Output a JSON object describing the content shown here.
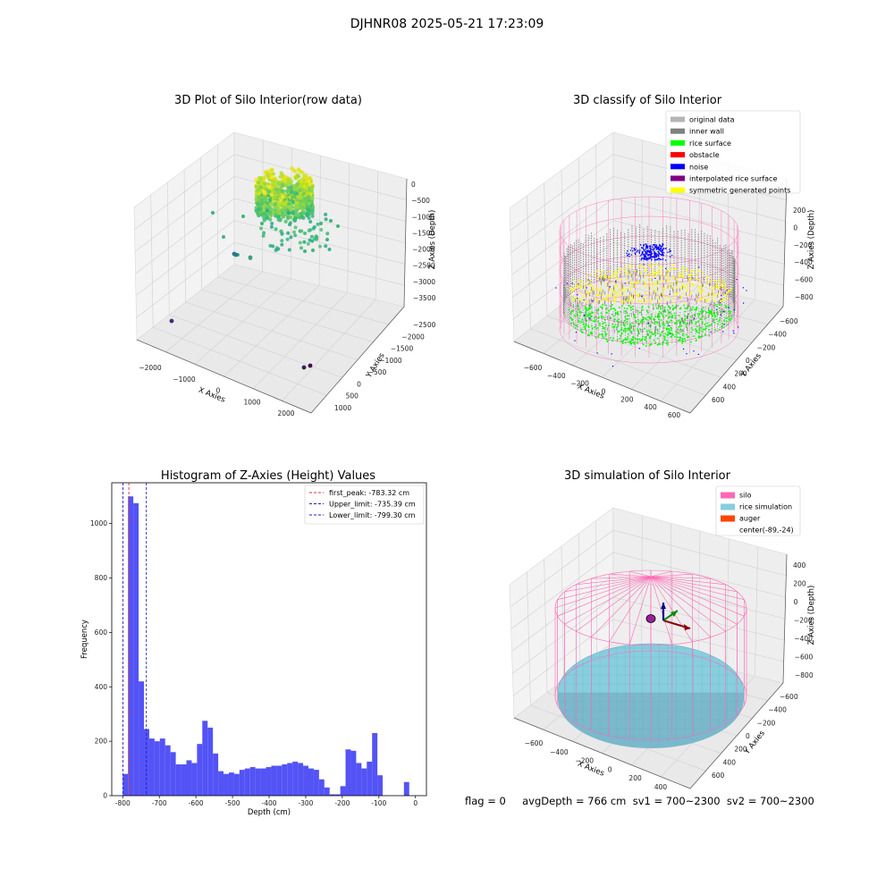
{
  "suptitle": "DJHNR08 2025-05-21 17:23:09",
  "footer_text": "flag = 0     avgDepth = 766 cm  sv1 = 700~2300  sv2 = 700~2300",
  "colors": {
    "bars": "#4a4af5",
    "first_peak_line": "#e03030",
    "limit_line": "#2020c0",
    "silo": "#ff69b4",
    "rice_simulation": "#87cedf",
    "auger": "#ff4500",
    "original_data": "#b5b5b5",
    "inner_wall": "#808080",
    "rice_surface": "#00ff00",
    "obstacle": "#ff0000",
    "noise": "#0000ff",
    "interpolated_rice_surface": "#800080",
    "symmetric_generated_points": "#ffff00"
  },
  "chart_data": [
    {
      "type": "scatter",
      "projection": "3d",
      "title": "3D Plot of Silo Interior(row data)",
      "xlabel": "X Axies",
      "ylabel": "Y Axies",
      "zlabel": "Z Axies (Depth)",
      "x_ticks": [
        "−2000",
        "−1000",
        "0",
        "1000",
        "2000"
      ],
      "y_ticks": [
        "1000",
        "500",
        "0",
        "−500",
        "−1000",
        "−1500",
        "−2000",
        "−2500"
      ],
      "z_ticks": [
        "0",
        "−500",
        "−1000",
        "−1500",
        "−2000",
        "−2500",
        "−3000",
        "−3500"
      ],
      "outlier_points": [
        {
          "x": -2200,
          "y": 900,
          "z": -3400
        },
        {
          "x": 2300,
          "y": -1600,
          "z": -3500
        },
        {
          "x": 2200,
          "y": -1500,
          "z": -3450
        },
        {
          "x": -1400,
          "y": 600,
          "z": -1900
        },
        {
          "x": -1300,
          "y": 550,
          "z": -1950
        },
        {
          "x": -800,
          "y": 300,
          "z": -1700
        }
      ],
      "colormap": "viridis"
    },
    {
      "type": "scatter",
      "projection": "3d",
      "title": "3D classify of Silo Interior",
      "xlabel": "X Axies",
      "ylabel": "Y Axies",
      "zlabel": "Z Axies (Depth)",
      "x_ticks": [
        "−600",
        "−400",
        "−200",
        "0",
        "200",
        "400",
        "600"
      ],
      "y_ticks": [
        "600",
        "400",
        "200",
        "0",
        "−200",
        "−400",
        "−600"
      ],
      "z_ticks": [
        "200",
        "0",
        "−200",
        "−400",
        "−600",
        "−800"
      ],
      "legend_position": "upper-right",
      "legend": [
        "original data",
        "inner wall",
        "rice surface",
        "obstacle",
        "noise",
        "interpolated rice surface",
        "symmetric generated points"
      ]
    },
    {
      "type": "bar",
      "title": "Histogram of Z-Axies (Height) Values",
      "xlabel": "Depth (cm)",
      "ylabel": "Frequency",
      "xlim": [
        -830,
        30
      ],
      "ylim": [
        0,
        1150
      ],
      "x_ticks": [
        -800,
        -700,
        -600,
        -500,
        -400,
        -300,
        -200,
        -100,
        0
      ],
      "y_ticks": [
        0,
        200,
        400,
        600,
        800,
        1000
      ],
      "bin_width": 14.5,
      "bins_start": [
        -800,
        -785.5,
        -771,
        -756.5,
        -742,
        -727.5,
        -713,
        -698.5,
        -684,
        -669.5,
        -655,
        -640.5,
        -626,
        -611.5,
        -597,
        -582.5,
        -568,
        -553.5,
        -539,
        -524.5,
        -510,
        -495.5,
        -481,
        -466.5,
        -452,
        -437.5,
        -423,
        -408.5,
        -394,
        -379.5,
        -365,
        -350.5,
        -336,
        -321.5,
        -307,
        -292.5,
        -278,
        -263.5,
        -249,
        -234.5,
        -220,
        -205.5,
        -191,
        -176.5,
        -162,
        -147.5,
        -133,
        -118.5,
        -104,
        -89.5,
        -75,
        -60.5,
        -46,
        -31.5,
        -17,
        -2.5
      ],
      "values": [
        80,
        1100,
        1075,
        420,
        245,
        210,
        200,
        210,
        185,
        160,
        115,
        115,
        130,
        120,
        190,
        275,
        250,
        155,
        90,
        80,
        85,
        80,
        95,
        100,
        105,
        100,
        100,
        105,
        110,
        110,
        115,
        120,
        125,
        120,
        110,
        100,
        95,
        60,
        30,
        5,
        5,
        35,
        170,
        165,
        120,
        100,
        125,
        230,
        75,
        0,
        0,
        0,
        0,
        50,
        0,
        0
      ],
      "vlines": [
        {
          "label": "first_peak: -783.32 cm",
          "x": -783.32,
          "color_key": "first_peak_line"
        },
        {
          "label": "Upper_limit: -735.39 cm",
          "x": -735.39,
          "color_key": "limit_line"
        },
        {
          "label": "Lower_limit: -799.30 cm",
          "x": -799.3,
          "color_key": "limit_line"
        }
      ],
      "legend_position": "upper-right"
    },
    {
      "type": "surface",
      "projection": "3d",
      "title": "3D simulation of Silo Interior",
      "xlabel": "X Axies",
      "ylabel": "Y Axies",
      "zlabel": "Z Axies (Depth)",
      "x_ticks": [
        "−600",
        "−400",
        "−200",
        "0",
        "200",
        "400"
      ],
      "y_ticks": [
        "600",
        "400",
        "200",
        "0",
        "−200",
        "−400",
        "−600"
      ],
      "z_ticks": [
        "400",
        "200",
        "0",
        "−200",
        "−400",
        "−600",
        "−800"
      ],
      "legend_position": "upper-right",
      "legend": [
        "silo",
        "rice simulation",
        "auger",
        "center(-89,-24)"
      ]
    }
  ]
}
